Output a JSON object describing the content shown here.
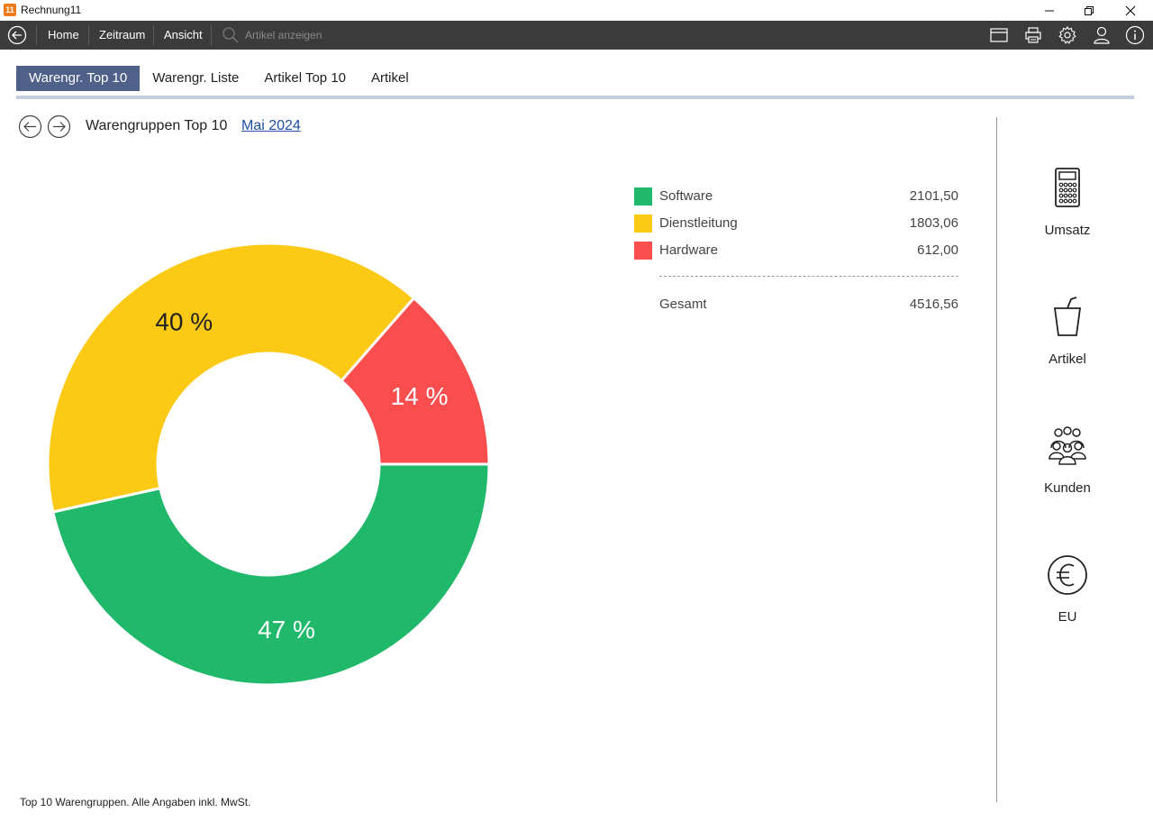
{
  "window": {
    "title": "Rechnung11",
    "app_icon_text": "11"
  },
  "toolbar": {
    "items": [
      "Home",
      "Zeitraum",
      "Ansicht"
    ],
    "search_placeholder": "Artikel anzeigen",
    "right_icons": [
      "window-icon",
      "print-icon",
      "settings-icon",
      "user-icon",
      "info-icon"
    ]
  },
  "tabs": [
    {
      "label": "Warengr. Top 10",
      "active": true
    },
    {
      "label": "Warengr. Liste",
      "active": false
    },
    {
      "label": "Artikel Top 10",
      "active": false
    },
    {
      "label": "Artikel",
      "active": false
    }
  ],
  "subheader": {
    "title": "Warengruppen Top 10",
    "period": "Mai 2024"
  },
  "chart_data": {
    "type": "pie",
    "categories": [
      "Software",
      "Dienstleitung",
      "Hardware"
    ],
    "values": [
      2101.5,
      1803.06,
      612.0
    ],
    "value_labels": [
      "2101,50",
      "1803,06",
      "612,00"
    ],
    "percent_labels": [
      "47 %",
      "40 %",
      "14 %"
    ],
    "colors": [
      "#20b86a",
      "#fcc915",
      "#fa4d4d"
    ],
    "total_label": "Gesamt",
    "total_value": "4516,56",
    "donut": true
  },
  "sidebar": {
    "items": [
      {
        "label": "Umsatz",
        "icon": "calculator-icon"
      },
      {
        "label": "Artikel",
        "icon": "cup-icon"
      },
      {
        "label": "Kunden",
        "icon": "customers-icon"
      },
      {
        "label": "EU",
        "icon": "euro-icon"
      }
    ]
  },
  "footer": {
    "note": "Top 10 Warengruppen. Alle Angaben inkl. MwSt."
  }
}
